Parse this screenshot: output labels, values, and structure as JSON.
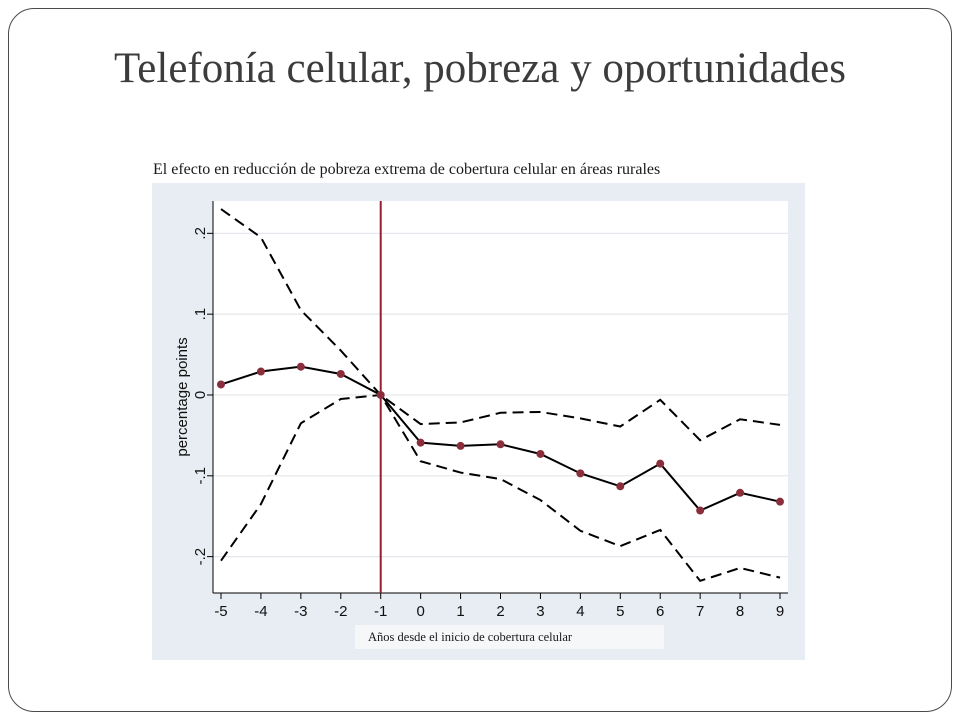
{
  "slide": {
    "title": "Telefonía celular, pobreza y oportunidades"
  },
  "chart_data": {
    "type": "line",
    "title": "El efecto en reducción de pobreza extrema de cobertura celular en áreas rurales",
    "xlabel": "Años desde el inicio de cobertura celular",
    "ylabel": "percentage points",
    "x": [
      -5,
      -4,
      -3,
      -2,
      -1,
      0,
      1,
      2,
      3,
      4,
      5,
      6,
      7,
      8,
      9
    ],
    "xticks": [
      "-5",
      "-4",
      "-3",
      "-2",
      "-1",
      "0",
      "1",
      "2",
      "3",
      "4",
      "5",
      "6",
      "7",
      "8",
      "9"
    ],
    "yticks": [
      {
        "value": -0.2,
        "label": "-.2"
      },
      {
        "value": -0.1,
        "label": "-.1"
      },
      {
        "value": 0,
        "label": "0"
      },
      {
        "value": 0.1,
        "label": ".1"
      },
      {
        "value": 0.2,
        "label": ".2"
      }
    ],
    "xlim": [
      -5.2,
      9.2
    ],
    "ylim": [
      -0.245,
      0.24
    ],
    "grid": "horizontal",
    "reference_line_x": -1,
    "series": [
      {
        "style": "solid-markers",
        "values": [
          0.013,
          0.029,
          0.035,
          0.026,
          0.0,
          -0.059,
          -0.063,
          -0.061,
          -0.073,
          -0.097,
          -0.113,
          -0.085,
          -0.143,
          -0.121,
          -0.132
        ]
      },
      {
        "style": "dashed",
        "values": [
          0.23,
          0.195,
          0.105,
          0.055,
          0.0,
          -0.036,
          -0.034,
          -0.022,
          -0.021,
          -0.029,
          -0.039,
          -0.006,
          -0.056,
          -0.03,
          -0.037
        ]
      },
      {
        "style": "dashed",
        "values": [
          -0.205,
          -0.135,
          -0.035,
          -0.005,
          0.0,
          -0.082,
          -0.096,
          -0.104,
          -0.13,
          -0.168,
          -0.187,
          -0.167,
          -0.23,
          -0.214,
          -0.226
        ]
      }
    ],
    "colors": {
      "panel_bg": "#e7edf2",
      "plot_bg": "#ffffff",
      "reference_line": "#9b1b30",
      "marker": "#8b2e3c",
      "line": "#000000",
      "grid": "#e3e7eb"
    }
  }
}
